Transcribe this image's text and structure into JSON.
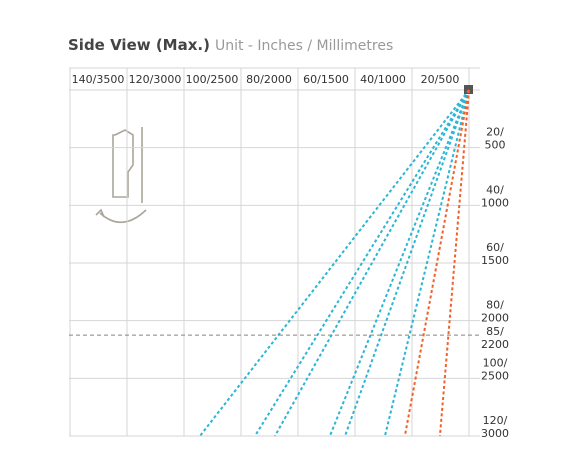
{
  "header": {
    "title": "Side View (Max.)",
    "subtitle": "Unit - Inches / Millimetres"
  },
  "x_axis": {
    "labels": [
      {
        "value": 140,
        "label": "140/3500"
      },
      {
        "value": 120,
        "label": "120/3000"
      },
      {
        "value": 100,
        "label": "100/2500"
      },
      {
        "value": 80,
        "label": "80/2000"
      },
      {
        "value": 60,
        "label": "60/1500"
      },
      {
        "value": 40,
        "label": "40/1000"
      },
      {
        "value": 20,
        "label": "20/500"
      }
    ]
  },
  "y_axis": {
    "labels": [
      {
        "value": 20,
        "lines": [
          "20/",
          "500"
        ]
      },
      {
        "value": 40,
        "lines": [
          "40/",
          "1000"
        ]
      },
      {
        "value": 60,
        "lines": [
          "60/",
          "1500"
        ]
      },
      {
        "value": 80,
        "lines": [
          "80/",
          "2000"
        ]
      },
      {
        "value": 100,
        "lines": [
          "100/",
          "2500"
        ]
      },
      {
        "value": 120,
        "lines": [
          "120/",
          "3000"
        ]
      }
    ]
  },
  "limit_line": {
    "value": 85,
    "lines": [
      "85/",
      "2200"
    ]
  },
  "beam_depth": 120,
  "beams": [
    {
      "color": "#2bb5d6",
      "end": 94.4
    },
    {
      "color": "#2bb5d6",
      "end": 75.1
    },
    {
      "color": "#2bb5d6",
      "end": 68.1
    },
    {
      "color": "#2bb5d6",
      "end": 48.8
    },
    {
      "color": "#2bb5d6",
      "end": 43.5
    },
    {
      "color": "#2bb5d6",
      "end": 29.5
    },
    {
      "color": "#f0612a",
      "end": 22.5
    },
    {
      "color": "#f0612a",
      "end": 10.2
    }
  ]
}
